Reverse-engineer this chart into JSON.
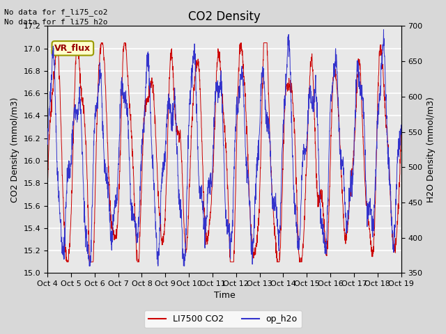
{
  "title": "CO2 Density",
  "xlabel": "Time",
  "ylabel_left": "CO2 Density (mmol/m3)",
  "ylabel_right": "H2O Density (mmol/m3)",
  "ylim_left": [
    15.0,
    17.2
  ],
  "ylim_right": [
    350,
    700
  ],
  "yticks_left": [
    15.0,
    15.2,
    15.4,
    15.6,
    15.8,
    16.0,
    16.2,
    16.4,
    16.6,
    16.8,
    17.0,
    17.2
  ],
  "yticks_right": [
    350,
    400,
    450,
    500,
    550,
    600,
    650,
    700
  ],
  "xtick_labels": [
    "Oct 4",
    "Oct 5",
    "Oct 6",
    "Oct 7",
    "Oct 8",
    "Oct 9",
    "Oct 10",
    "Oct 11",
    "Oct 12",
    "Oct 13",
    "Oct 14",
    "Oct 15",
    "Oct 16",
    "Oct 17",
    "Oct 18",
    "Oct 19"
  ],
  "legend_entries": [
    "LI7500 CO2",
    "op_h2o"
  ],
  "legend_colors": [
    "#cc0000",
    "#3333cc"
  ],
  "note_lines": [
    "No data for f_li75_co2",
    "No data for f_li75_h2o"
  ],
  "box_label": "VR_flux",
  "box_facecolor": "#ffffcc",
  "box_edgecolor": "#999900",
  "box_textcolor": "#990000",
  "background_color": "#d8d8d8",
  "plot_bg_color": "#e8e8e8",
  "grid_color": "#ffffff",
  "co2_color": "#cc0000",
  "h2o_color": "#3333cc",
  "title_fontsize": 12,
  "label_fontsize": 9,
  "tick_fontsize": 8,
  "note_fontsize": 8
}
